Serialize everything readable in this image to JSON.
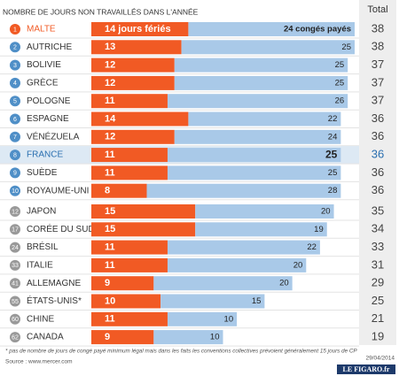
{
  "chart_data": {
    "type": "bar",
    "subtitle": "NOMBRE DE JOURS NON TRAVAILLÉS DANS L'ANNÉE",
    "total_header": "Total",
    "ranks": [
      1,
      2,
      3,
      4,
      5,
      6,
      7,
      8,
      9,
      10,
      12,
      17,
      24,
      33,
      41,
      55,
      60,
      62
    ],
    "categories": [
      "MALTE",
      "AUTRICHE",
      "BOLIVIE",
      "GRÈCE",
      "POLOGNE",
      "ESPAGNE",
      "VÉNÉZUELA",
      "FRANCE",
      "SUÈDE",
      "ROYAUME-UNI",
      "JAPON",
      "CORÉE DU SUD",
      "BRÉSIL",
      "ITALIE",
      "ALLEMAGNE",
      "ÉTATS-UNIS*",
      "CHINE",
      "CANADA"
    ],
    "series": [
      {
        "color": "#f15a24",
        "values": [
          14,
          13,
          12,
          12,
          11,
          14,
          12,
          11,
          11,
          8,
          15,
          15,
          11,
          11,
          9,
          10,
          11,
          9
        ],
        "value_labels": [
          "14 jours fériés",
          "13",
          "12",
          "12",
          "11",
          "14",
          "12",
          "11",
          "11",
          "8",
          "15",
          "15",
          "11",
          "11",
          "9",
          "10",
          "11",
          "9"
        ]
      },
      {
        "color": "#a9c9e8",
        "values": [
          24,
          25,
          25,
          25,
          26,
          22,
          24,
          25,
          25,
          28,
          20,
          19,
          22,
          20,
          20,
          15,
          10,
          10
        ],
        "value_labels": [
          "24 congés payés",
          "25",
          "25",
          "25",
          "26",
          "22",
          "24",
          "25",
          "25",
          "28",
          "20",
          "19",
          "22",
          "20",
          "20",
          "15",
          "10",
          "10"
        ]
      }
    ],
    "totals": [
      38,
      38,
      37,
      37,
      37,
      36,
      36,
      36,
      36,
      36,
      35,
      34,
      33,
      31,
      29,
      25,
      21,
      19
    ],
    "xlim": [
      0,
      38
    ],
    "footnote": "* pas de nombre de jours de congé payé minimum légal mais dans les faits les conventions collectives prévoient généralement 15 jours de CP",
    "source": "Source : www.mercer.com",
    "date": "29/04/2014",
    "logo": "LE FIGARO.fr"
  }
}
